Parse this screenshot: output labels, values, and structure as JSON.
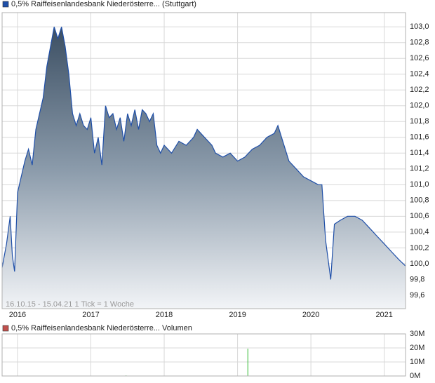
{
  "chart_data": [
    {
      "type": "area",
      "series": [
        {
          "name": "0,5% Raiffeisenlandesbank Niederösterre... (Stuttgart)",
          "color": "#1f4fa8",
          "x": [
            2015.79,
            2015.85,
            2015.9,
            2015.93,
            2015.96,
            2016.0,
            2016.05,
            2016.1,
            2016.15,
            2016.2,
            2016.25,
            2016.3,
            2016.35,
            2016.4,
            2016.45,
            2016.5,
            2016.55,
            2016.6,
            2016.65,
            2016.7,
            2016.75,
            2016.8,
            2016.85,
            2016.9,
            2016.95,
            2017.0,
            2017.05,
            2017.1,
            2017.15,
            2017.2,
            2017.25,
            2017.3,
            2017.35,
            2017.4,
            2017.45,
            2017.5,
            2017.55,
            2017.6,
            2017.65,
            2017.7,
            2017.75,
            2017.8,
            2017.85,
            2017.9,
            2017.95,
            2018.0,
            2018.1,
            2018.2,
            2018.3,
            2018.4,
            2018.45,
            2018.55,
            2018.65,
            2018.7,
            2018.8,
            2018.9,
            2019.0,
            2019.1,
            2019.2,
            2019.3,
            2019.4,
            2019.5,
            2019.55,
            2019.6,
            2019.7,
            2019.8,
            2019.9,
            2020.0,
            2020.1,
            2020.15,
            2020.2,
            2020.27,
            2020.32,
            2020.4,
            2020.5,
            2020.6,
            2020.7,
            2020.8,
            2020.9,
            2021.0,
            2021.1,
            2021.2,
            2021.29
          ],
          "values": [
            99.95,
            100.25,
            100.6,
            100.1,
            99.9,
            100.9,
            101.1,
            101.3,
            101.45,
            101.25,
            101.7,
            101.9,
            102.1,
            102.5,
            102.75,
            103.0,
            102.85,
            103.0,
            102.75,
            102.4,
            101.9,
            101.75,
            101.9,
            101.75,
            101.7,
            101.85,
            101.4,
            101.6,
            101.25,
            102.0,
            101.85,
            101.9,
            101.7,
            101.85,
            101.55,
            101.9,
            101.75,
            101.95,
            101.7,
            101.95,
            101.9,
            101.8,
            101.9,
            101.5,
            101.4,
            101.5,
            101.4,
            101.55,
            101.5,
            101.6,
            101.7,
            101.6,
            101.5,
            101.4,
            101.35,
            101.4,
            101.3,
            101.35,
            101.45,
            101.5,
            101.6,
            101.65,
            101.75,
            101.6,
            101.3,
            101.2,
            101.1,
            101.05,
            101.0,
            101.0,
            100.3,
            99.8,
            100.5,
            100.55,
            100.6,
            100.6,
            100.55,
            100.45,
            100.35,
            100.25,
            100.15,
            100.05,
            99.97
          ]
        }
      ],
      "xlim": [
        2015.79,
        2021.29
      ],
      "xticks": [
        2016,
        2017,
        2018,
        2019,
        2020,
        2021
      ],
      "ylim": [
        99.43,
        103.18
      ],
      "yticks": [
        {
          "value": 99.6,
          "label": "99,6"
        },
        {
          "value": 99.8,
          "label": "99,8"
        },
        {
          "value": 100.0,
          "label": "100,0"
        },
        {
          "value": 100.2,
          "label": "100,2"
        },
        {
          "value": 100.4,
          "label": "100,4"
        },
        {
          "value": 100.6,
          "label": "100,6"
        },
        {
          "value": 100.8,
          "label": "100,8"
        },
        {
          "value": 101.0,
          "label": "101,0"
        },
        {
          "value": 101.2,
          "label": "101,2"
        },
        {
          "value": 101.4,
          "label": "101,4"
        },
        {
          "value": 101.6,
          "label": "101,6"
        },
        {
          "value": 101.8,
          "label": "101,8"
        },
        {
          "value": 102.0,
          "label": "102,0"
        },
        {
          "value": 102.2,
          "label": "102,2"
        },
        {
          "value": 102.4,
          "label": "102,4"
        },
        {
          "value": 102.6,
          "label": "102,6"
        },
        {
          "value": 102.8,
          "label": "102,8"
        },
        {
          "value": 103.0,
          "label": "103,0"
        }
      ],
      "note": "16.10.15 - 15.04.21   1 Tick = 1 Woche",
      "grid": true
    },
    {
      "type": "bar",
      "series": [
        {
          "name": "0,5% Raiffeisenlandesbank Niederösterre... Volumen",
          "color": "#33bb33",
          "legend_color": "#c0504d",
          "x": [
            2017.48,
            2019.14
          ],
          "values": [
            400000,
            19500000
          ]
        }
      ],
      "xlim": [
        2015.79,
        2021.29
      ],
      "xticks": [
        2016,
        2017,
        2018,
        2019,
        2020,
        2021
      ],
      "ylim": [
        0,
        30000000
      ],
      "yticks": [
        {
          "value": 0,
          "label": "0M"
        },
        {
          "value": 10000000,
          "label": "10M"
        },
        {
          "value": 20000000,
          "label": "20M"
        },
        {
          "value": 30000000,
          "label": "30M"
        }
      ],
      "grid": true
    }
  ]
}
